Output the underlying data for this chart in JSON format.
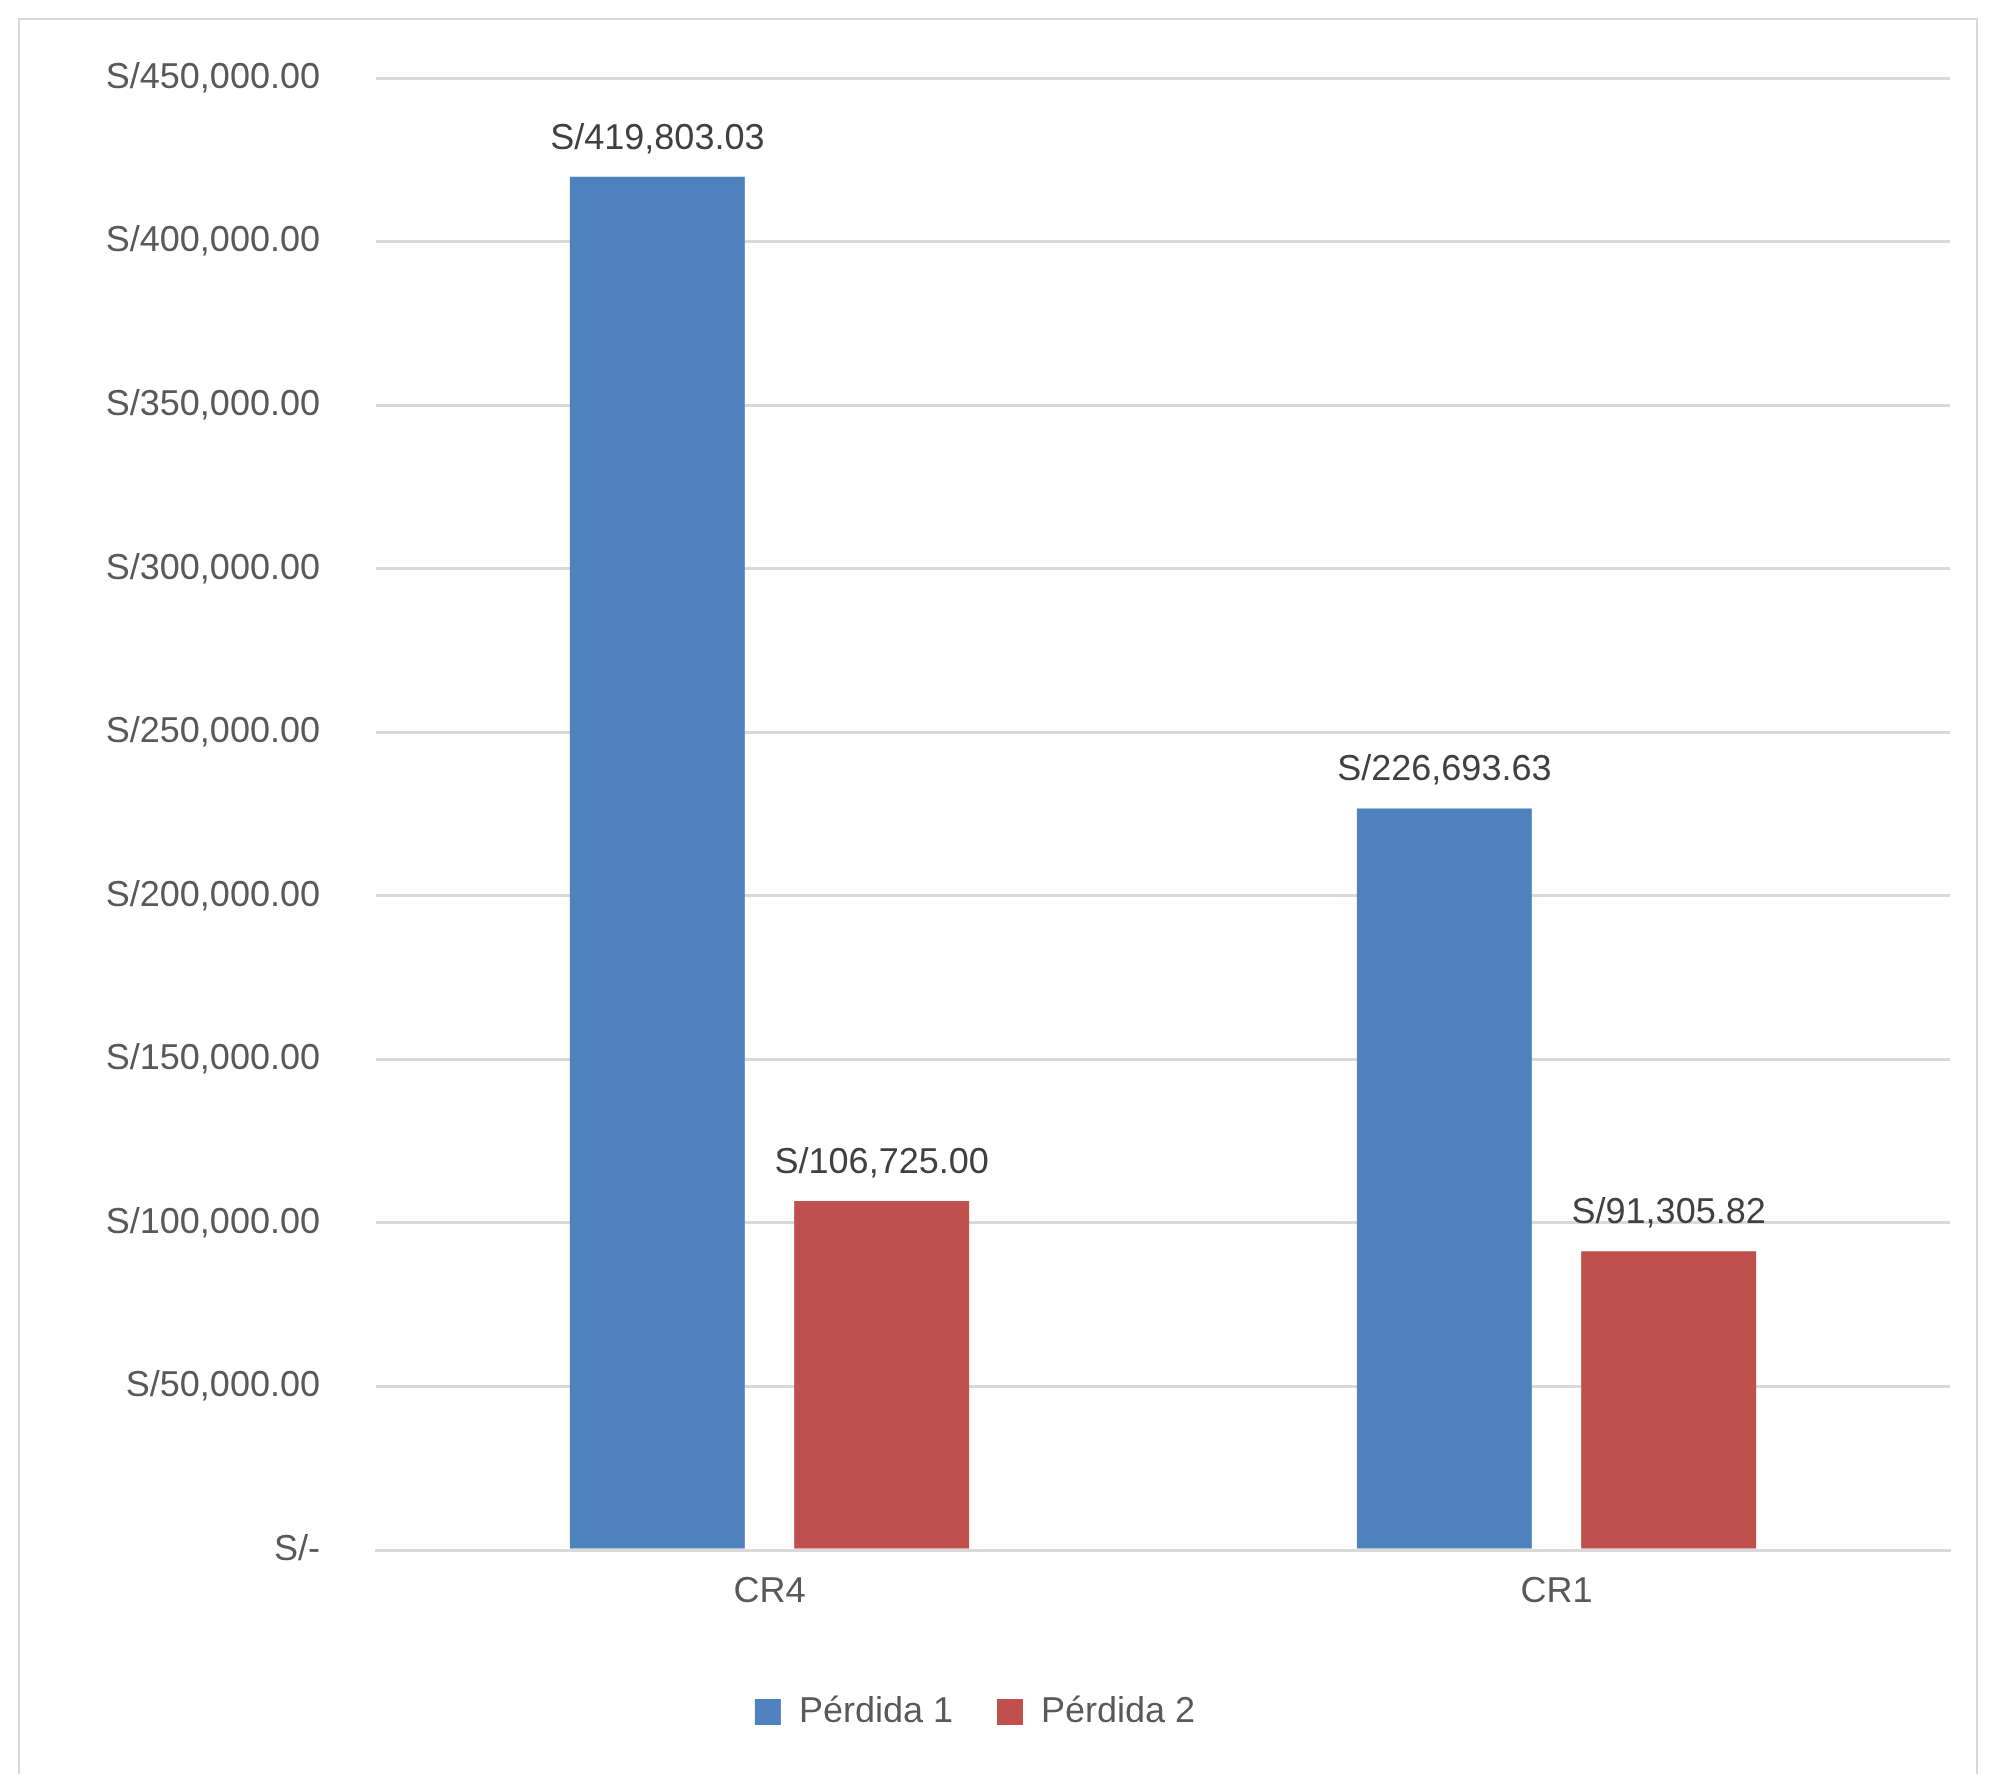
{
  "chart_data": {
    "type": "bar",
    "categories": [
      "CR4",
      "CR1"
    ],
    "series": [
      {
        "name": "Pérdida 1",
        "color": "#4f81bd",
        "values": [
          419803.03,
          226693.63
        ],
        "value_labels": [
          "S/419,803.03",
          "S/226,693.63"
        ]
      },
      {
        "name": "Pérdida 2",
        "color": "#c0504d",
        "values": [
          106725.0,
          91305.82
        ],
        "value_labels": [
          "S/106,725.00",
          "S/91,305.82"
        ]
      }
    ],
    "ylim": [
      0,
      450000
    ],
    "yticks": [
      {
        "value": 0,
        "label": "S/-"
      },
      {
        "value": 50000,
        "label": "S/50,000.00"
      },
      {
        "value": 100000,
        "label": "S/100,000.00"
      },
      {
        "value": 150000,
        "label": "S/150,000.00"
      },
      {
        "value": 200000,
        "label": "S/200,000.00"
      },
      {
        "value": 250000,
        "label": "S/250,000.00"
      },
      {
        "value": 300000,
        "label": "S/300,000.00"
      },
      {
        "value": 350000,
        "label": "S/350,000.00"
      },
      {
        "value": 400000,
        "label": "S/400,000.00"
      },
      {
        "value": 450000,
        "label": "S/450,000.00"
      }
    ],
    "grid": "y",
    "legend": "bottom"
  }
}
